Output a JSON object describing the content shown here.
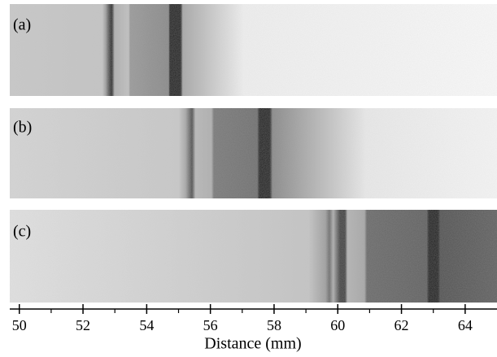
{
  "chart_data": {
    "type": "image-strips",
    "panel_labels": [
      "(a)",
      "(b)",
      "(c)"
    ],
    "xlabel": "Distance (mm)",
    "xlim": [
      49.7,
      65.0
    ],
    "xticks": [
      50,
      52,
      54,
      56,
      58,
      60,
      62,
      64
    ],
    "xminor_ticks": [
      51,
      53,
      55,
      57,
      59,
      61,
      63
    ]
  }
}
